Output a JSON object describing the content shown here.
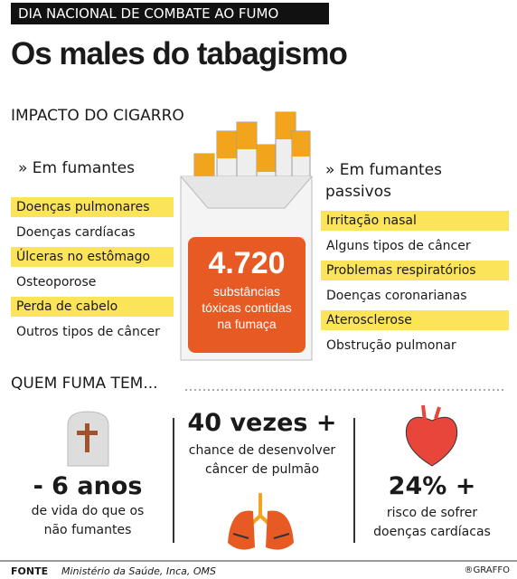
{
  "header": {
    "tag": "DIA NACIONAL DE COMBATE AO FUMO",
    "title": "Os males do tabagismo"
  },
  "impact": {
    "title": "IMPACTO DO CIGARRO",
    "smokers": {
      "title": "» Em fumantes",
      "items": [
        {
          "text": "Doenças pulmonares",
          "highlight": true
        },
        {
          "text": "Doenças cardíacas",
          "highlight": false
        },
        {
          "text": "Úlceras no estômago",
          "highlight": true
        },
        {
          "text": "Osteoporose",
          "highlight": false
        },
        {
          "text": "Perda de cabelo",
          "highlight": true
        },
        {
          "text": "Outros tipos de câncer",
          "highlight": false
        }
      ]
    },
    "passive": {
      "title": "» Em fumantes passivos",
      "items": [
        {
          "text": "Irritação nasal",
          "highlight": true
        },
        {
          "text": "Alguns tipos de câncer",
          "highlight": false
        },
        {
          "text": "Problemas respiratórios",
          "highlight": true
        },
        {
          "text": "Doenças coronarianas",
          "highlight": false
        },
        {
          "text": "Aterosclerose",
          "highlight": true
        },
        {
          "text": "Obstrução pulmonar",
          "highlight": false
        }
      ]
    },
    "pack": {
      "number": "4.720",
      "text": "substâncias tóxicas contidas na fumaça"
    }
  },
  "who": {
    "title": "QUEM FUMA TEM...",
    "stats": [
      {
        "value": "- 6 anos",
        "text": "de vida do que os não fumantes"
      },
      {
        "value": "40 vezes +",
        "text": "chance de desenvolver câncer de pulmão"
      },
      {
        "value": "24% +",
        "text": "risco de sofrer doenças cardíacas"
      }
    ]
  },
  "footer": {
    "label": "FONTE",
    "source": "Ministério da Saúde, Inca, OMS",
    "credit": "®GRAFFO"
  }
}
